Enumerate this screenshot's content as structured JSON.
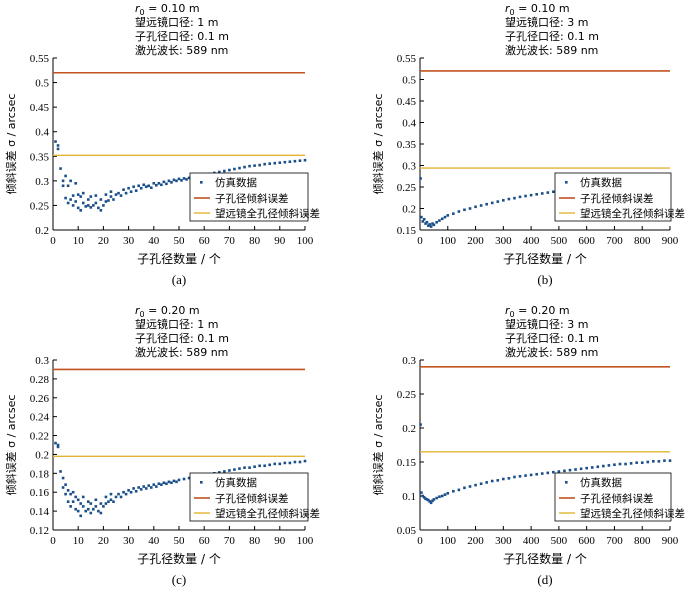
{
  "colors": {
    "scatter": "#1a4f8a",
    "subaperture": "#c0531f",
    "full": "#e3b432"
  },
  "chart_data": [
    {
      "type": "scatter",
      "panel": "(a)",
      "title_lines": [
        "r0 = 0.10 m",
        "望远镜口径: 1 m",
        "子孔径口径: 0.1 m",
        "激光波长: 589 nm"
      ],
      "r0_label": "r",
      "r0_sub": "0",
      "r0_value": " = 0.10 m",
      "telescope": "望远镜口径: 1 m",
      "subaperture": "子孔径口径: 0.1 m",
      "wavelength": "激光波长: 589 nm",
      "xlabel": "子孔径数量 / 个",
      "ylabel": "倾斜误差 σ / arcsec",
      "xlim": [
        0,
        100
      ],
      "ylim": [
        0.2,
        0.55
      ],
      "xticks": [
        "0",
        "10",
        "20",
        "30",
        "40",
        "50",
        "60",
        "70",
        "80",
        "90",
        "100"
      ],
      "yticks": [
        "0.2",
        "0.25",
        "0.3",
        "0.35",
        "0.4",
        "0.45",
        "0.5",
        "0.55"
      ],
      "subaperture_tilt": 0.52,
      "full_aperture_tilt": 0.352,
      "legend": [
        "仿真数据",
        "子孔径倾斜误差",
        "望远镜全孔径倾斜误差"
      ],
      "sim_points": [
        [
          1,
          0.38
        ],
        [
          2,
          0.372
        ],
        [
          2,
          0.365
        ],
        [
          3,
          0.325
        ],
        [
          4,
          0.3
        ],
        [
          4,
          0.29
        ],
        [
          5,
          0.265
        ],
        [
          5,
          0.31
        ],
        [
          6,
          0.255
        ],
        [
          6,
          0.29
        ],
        [
          7,
          0.262
        ],
        [
          7,
          0.3
        ],
        [
          8,
          0.25
        ],
        [
          8,
          0.27
        ],
        [
          9,
          0.258
        ],
        [
          9,
          0.295
        ],
        [
          10,
          0.245
        ],
        [
          10,
          0.272
        ],
        [
          11,
          0.24
        ],
        [
          11,
          0.268
        ],
        [
          12,
          0.255
        ],
        [
          12,
          0.275
        ],
        [
          13,
          0.248
        ],
        [
          14,
          0.25
        ],
        [
          14,
          0.262
        ],
        [
          15,
          0.246
        ],
        [
          15,
          0.268
        ],
        [
          16,
          0.25
        ],
        [
          17,
          0.255
        ],
        [
          17,
          0.27
        ],
        [
          18,
          0.245
        ],
        [
          19,
          0.24
        ],
        [
          19,
          0.262
        ],
        [
          20,
          0.25
        ],
        [
          21,
          0.258
        ],
        [
          21,
          0.272
        ],
        [
          22,
          0.26
        ],
        [
          23,
          0.268
        ],
        [
          23,
          0.278
        ],
        [
          24,
          0.262
        ],
        [
          25,
          0.272
        ],
        [
          26,
          0.275
        ],
        [
          27,
          0.27
        ],
        [
          28,
          0.282
        ],
        [
          29,
          0.275
        ],
        [
          30,
          0.285
        ],
        [
          31,
          0.278
        ],
        [
          32,
          0.288
        ],
        [
          33,
          0.28
        ],
        [
          34,
          0.29
        ],
        [
          35,
          0.285
        ],
        [
          36,
          0.292
        ],
        [
          37,
          0.288
        ],
        [
          38,
          0.29
        ],
        [
          39,
          0.286
        ],
        [
          40,
          0.295
        ],
        [
          41,
          0.291
        ],
        [
          42,
          0.295
        ],
        [
          43,
          0.292
        ],
        [
          44,
          0.298
        ],
        [
          45,
          0.294
        ],
        [
          46,
          0.3
        ],
        [
          47,
          0.297
        ],
        [
          48,
          0.302
        ],
        [
          49,
          0.3
        ],
        [
          50,
          0.304
        ],
        [
          51,
          0.301
        ],
        [
          52,
          0.305
        ],
        [
          53,
          0.303
        ],
        [
          54,
          0.306
        ],
        [
          55,
          0.305
        ],
        [
          56,
          0.308
        ],
        [
          57,
          0.307
        ],
        [
          58,
          0.31
        ],
        [
          59,
          0.309
        ],
        [
          60,
          0.312
        ],
        [
          62,
          0.314
        ],
        [
          64,
          0.316
        ],
        [
          66,
          0.318
        ],
        [
          68,
          0.32
        ],
        [
          70,
          0.322
        ],
        [
          72,
          0.324
        ],
        [
          74,
          0.326
        ],
        [
          76,
          0.328
        ],
        [
          78,
          0.33
        ],
        [
          80,
          0.331
        ],
        [
          82,
          0.332
        ],
        [
          84,
          0.334
        ],
        [
          86,
          0.335
        ],
        [
          88,
          0.336
        ],
        [
          90,
          0.337
        ],
        [
          92,
          0.338
        ],
        [
          94,
          0.339
        ],
        [
          96,
          0.34
        ],
        [
          98,
          0.341
        ],
        [
          100,
          0.342
        ]
      ]
    },
    {
      "type": "scatter",
      "panel": "(b)",
      "r0_label": "r",
      "r0_sub": "0",
      "r0_value": " = 0.10 m",
      "telescope": "望远镜口径: 3 m",
      "subaperture": "子孔径口径: 0.1 m",
      "wavelength": "激光波长: 589 nm",
      "xlabel": "子孔径数量 / 个",
      "ylabel": "倾斜误差 σ / arcsec",
      "xlim": [
        0,
        900
      ],
      "ylim": [
        0.15,
        0.55
      ],
      "xticks": [
        "0",
        "100",
        "200",
        "300",
        "400",
        "500",
        "600",
        "700",
        "800",
        "900"
      ],
      "yticks": [
        "0.15",
        "0.2",
        "0.25",
        "0.3",
        "0.35",
        "0.4",
        "0.45",
        "0.5",
        "0.55"
      ],
      "subaperture_tilt": 0.52,
      "full_aperture_tilt": 0.294,
      "legend": [
        "仿真数据",
        "子孔径倾斜误差",
        "望远镜全孔径倾斜误差"
      ],
      "sim_points": [
        [
          2,
          0.27
        ],
        [
          5,
          0.18
        ],
        [
          10,
          0.17
        ],
        [
          15,
          0.175
        ],
        [
          20,
          0.165
        ],
        [
          25,
          0.168
        ],
        [
          30,
          0.16
        ],
        [
          35,
          0.163
        ],
        [
          40,
          0.158
        ],
        [
          45,
          0.165
        ],
        [
          50,
          0.162
        ],
        [
          60,
          0.168
        ],
        [
          70,
          0.172
        ],
        [
          80,
          0.176
        ],
        [
          90,
          0.18
        ],
        [
          100,
          0.184
        ],
        [
          120,
          0.188
        ],
        [
          140,
          0.193
        ],
        [
          160,
          0.197
        ],
        [
          180,
          0.2
        ],
        [
          200,
          0.204
        ],
        [
          220,
          0.207
        ],
        [
          240,
          0.21
        ],
        [
          260,
          0.213
        ],
        [
          280,
          0.216
        ],
        [
          300,
          0.219
        ],
        [
          320,
          0.222
        ],
        [
          340,
          0.224
        ],
        [
          360,
          0.227
        ],
        [
          380,
          0.229
        ],
        [
          400,
          0.231
        ],
        [
          420,
          0.233
        ],
        [
          440,
          0.235
        ],
        [
          460,
          0.237
        ],
        [
          480,
          0.239
        ]
      ]
    },
    {
      "type": "scatter",
      "panel": "(c)",
      "r0_label": "r",
      "r0_sub": "0",
      "r0_value": " = 0.20 m",
      "telescope": "望远镜口径: 1 m",
      "subaperture": "子孔径口径: 0.1 m",
      "wavelength": "激光波长: 589 nm",
      "xlabel": "子孔径数量 / 个",
      "ylabel": "倾斜误差 σ / arcsec",
      "xlim": [
        0,
        100
      ],
      "ylim": [
        0.12,
        0.3
      ],
      "xticks": [
        "0",
        "10",
        "20",
        "30",
        "40",
        "50",
        "60",
        "70",
        "80",
        "90",
        "100"
      ],
      "yticks": [
        "0.12",
        "0.14",
        "0.16",
        "0.18",
        "0.2",
        "0.22",
        "0.24",
        "0.26",
        "0.28",
        "0.3"
      ],
      "subaperture_tilt": 0.29,
      "full_aperture_tilt": 0.198,
      "legend": [
        "仿真数据",
        "子孔径倾斜误差",
        "望远镜全孔径倾斜误差"
      ],
      "sim_points": [
        [
          1,
          0.212
        ],
        [
          2,
          0.21
        ],
        [
          2,
          0.208
        ],
        [
          3,
          0.182
        ],
        [
          4,
          0.165
        ],
        [
          4,
          0.175
        ],
        [
          5,
          0.158
        ],
        [
          5,
          0.168
        ],
        [
          6,
          0.15
        ],
        [
          6,
          0.162
        ],
        [
          7,
          0.145
        ],
        [
          7,
          0.158
        ],
        [
          8,
          0.15
        ],
        [
          8,
          0.16
        ],
        [
          9,
          0.142
        ],
        [
          9,
          0.155
        ],
        [
          10,
          0.14
        ],
        [
          10,
          0.152
        ],
        [
          11,
          0.135
        ],
        [
          11,
          0.148
        ],
        [
          12,
          0.145
        ],
        [
          12,
          0.155
        ],
        [
          13,
          0.14
        ],
        [
          14,
          0.142
        ],
        [
          14,
          0.15
        ],
        [
          15,
          0.138
        ],
        [
          15,
          0.148
        ],
        [
          16,
          0.142
        ],
        [
          17,
          0.145
        ],
        [
          17,
          0.152
        ],
        [
          18,
          0.14
        ],
        [
          19,
          0.138
        ],
        [
          19,
          0.148
        ],
        [
          20,
          0.145
        ],
        [
          21,
          0.148
        ],
        [
          21,
          0.155
        ],
        [
          22,
          0.15
        ],
        [
          23,
          0.152
        ],
        [
          23,
          0.158
        ],
        [
          24,
          0.15
        ],
        [
          25,
          0.155
        ],
        [
          26,
          0.158
        ],
        [
          27,
          0.155
        ],
        [
          28,
          0.16
        ],
        [
          29,
          0.158
        ],
        [
          30,
          0.162
        ],
        [
          31,
          0.16
        ],
        [
          32,
          0.164
        ],
        [
          33,
          0.161
        ],
        [
          34,
          0.165
        ],
        [
          35,
          0.163
        ],
        [
          36,
          0.166
        ],
        [
          37,
          0.164
        ],
        [
          38,
          0.167
        ],
        [
          39,
          0.165
        ],
        [
          40,
          0.168
        ],
        [
          41,
          0.166
        ],
        [
          42,
          0.169
        ],
        [
          43,
          0.168
        ],
        [
          44,
          0.17
        ],
        [
          45,
          0.169
        ],
        [
          46,
          0.171
        ],
        [
          47,
          0.17
        ],
        [
          48,
          0.172
        ],
        [
          49,
          0.171
        ],
        [
          50,
          0.173
        ],
        [
          52,
          0.174
        ],
        [
          54,
          0.175
        ],
        [
          56,
          0.176
        ],
        [
          58,
          0.177
        ],
        [
          60,
          0.178
        ],
        [
          62,
          0.179
        ],
        [
          64,
          0.18
        ],
        [
          66,
          0.181
        ],
        [
          68,
          0.182
        ],
        [
          70,
          0.183
        ],
        [
          72,
          0.184
        ],
        [
          74,
          0.185
        ],
        [
          76,
          0.186
        ],
        [
          78,
          0.186
        ],
        [
          80,
          0.187
        ],
        [
          82,
          0.188
        ],
        [
          84,
          0.188
        ],
        [
          86,
          0.189
        ],
        [
          88,
          0.19
        ],
        [
          90,
          0.19
        ],
        [
          92,
          0.191
        ],
        [
          94,
          0.191
        ],
        [
          96,
          0.192
        ],
        [
          98,
          0.192
        ],
        [
          100,
          0.193
        ]
      ]
    },
    {
      "type": "scatter",
      "panel": "(d)",
      "r0_label": "r",
      "r0_sub": "0",
      "r0_value": " = 0.20 m",
      "telescope": "望远镜口径: 3 m",
      "subaperture": "子孔径口径: 0.1 m",
      "wavelength": "激光波长: 589 nm",
      "xlabel": "子孔径数量 / 个",
      "ylabel": "倾斜误差 σ / arcsec",
      "xlim": [
        0,
        900
      ],
      "ylim": [
        0.05,
        0.3
      ],
      "xticks": [
        "0",
        "100",
        "200",
        "300",
        "400",
        "500",
        "600",
        "700",
        "800",
        "900"
      ],
      "yticks": [
        "0.05",
        "0.1",
        "0.15",
        "0.2",
        "0.25",
        "0.3"
      ],
      "subaperture_tilt": 0.29,
      "full_aperture_tilt": 0.165,
      "legend": [
        "仿真数据",
        "子孔径倾斜误差",
        "望远镜全孔径倾斜误差"
      ],
      "sim_points": [
        [
          2,
          0.205
        ],
        [
          5,
          0.105
        ],
        [
          10,
          0.1
        ],
        [
          15,
          0.098
        ],
        [
          20,
          0.096
        ],
        [
          25,
          0.095
        ],
        [
          30,
          0.094
        ],
        [
          35,
          0.092
        ],
        [
          40,
          0.09
        ],
        [
          45,
          0.093
        ],
        [
          50,
          0.095
        ],
        [
          60,
          0.097
        ],
        [
          70,
          0.099
        ],
        [
          80,
          0.1
        ],
        [
          90,
          0.102
        ],
        [
          100,
          0.104
        ],
        [
          120,
          0.107
        ],
        [
          140,
          0.109
        ],
        [
          160,
          0.112
        ],
        [
          180,
          0.114
        ],
        [
          200,
          0.116
        ],
        [
          220,
          0.118
        ],
        [
          240,
          0.12
        ],
        [
          260,
          0.122
        ],
        [
          280,
          0.123
        ],
        [
          300,
          0.125
        ],
        [
          320,
          0.126
        ],
        [
          340,
          0.128
        ],
        [
          360,
          0.129
        ],
        [
          380,
          0.13
        ],
        [
          400,
          0.131
        ],
        [
          420,
          0.132
        ],
        [
          440,
          0.133
        ],
        [
          460,
          0.134
        ],
        [
          480,
          0.135
        ],
        [
          500,
          0.136
        ],
        [
          520,
          0.137
        ],
        [
          540,
          0.138
        ],
        [
          560,
          0.139
        ],
        [
          580,
          0.14
        ],
        [
          600,
          0.141
        ],
        [
          620,
          0.142
        ],
        [
          640,
          0.143
        ],
        [
          660,
          0.144
        ],
        [
          680,
          0.145
        ],
        [
          700,
          0.146
        ],
        [
          720,
          0.147
        ],
        [
          740,
          0.147
        ],
        [
          760,
          0.148
        ],
        [
          780,
          0.149
        ],
        [
          800,
          0.149
        ],
        [
          820,
          0.15
        ],
        [
          840,
          0.151
        ],
        [
          860,
          0.151
        ],
        [
          880,
          0.152
        ],
        [
          900,
          0.152
        ]
      ]
    }
  ]
}
